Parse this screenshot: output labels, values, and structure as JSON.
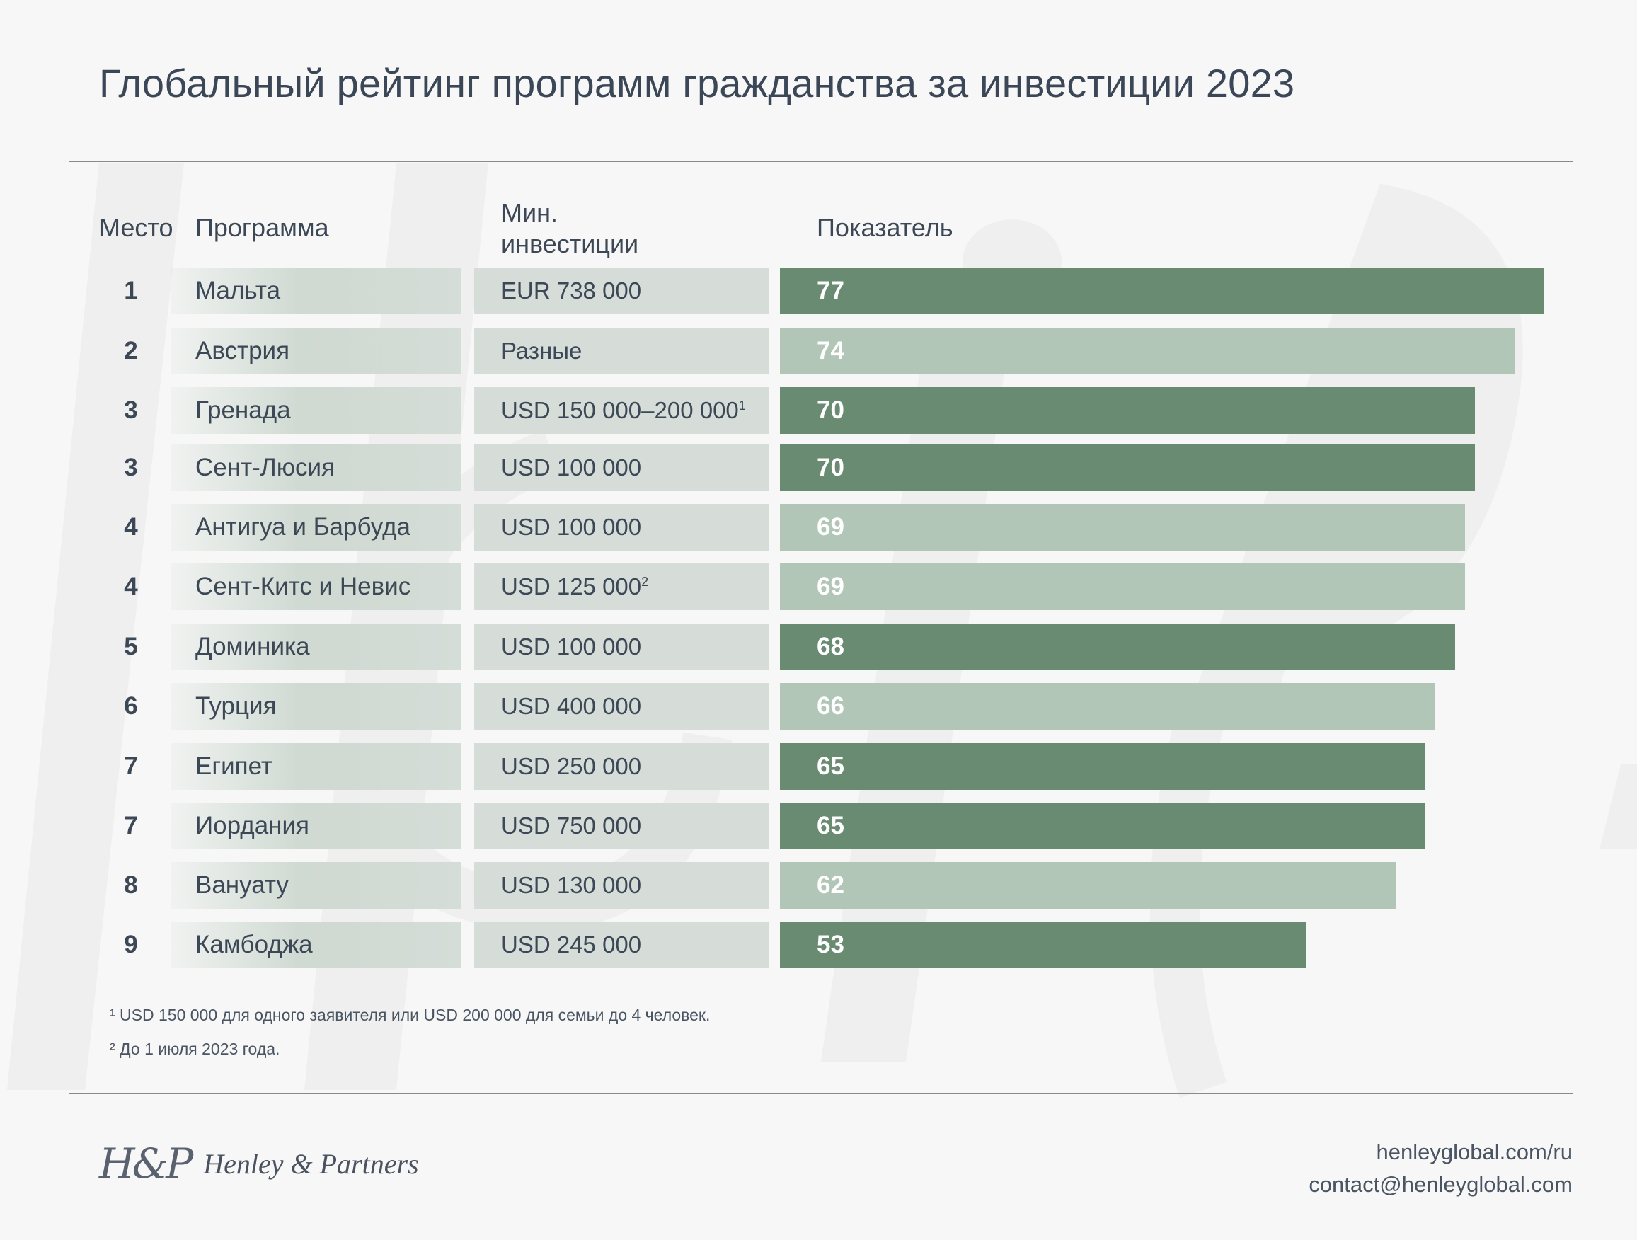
{
  "title": "Глобальный рейтинг программ гражданства за инвестиции 2023",
  "headers": {
    "rank": "Место",
    "program": "Программа",
    "investment_line1": "Мин.",
    "investment_line2": "инвестиции",
    "score": "Показатель"
  },
  "colors": {
    "dark_bar": "#688b71",
    "light_bar": "#b1c6b6",
    "text": "#3d4856"
  },
  "chart_data": {
    "type": "bar",
    "title": "Глобальный рейтинг программ гражданства за инвестиции 2023",
    "categories": [
      "Мальта",
      "Австрия",
      "Гренада",
      "Сент-Люсия",
      "Антигуа и Барбуда",
      "Сент-Китс и Невис",
      "Доминика",
      "Турция",
      "Египет",
      "Иордания",
      "Вануату",
      "Камбоджа"
    ],
    "values": [
      77,
      74,
      70,
      70,
      69,
      69,
      68,
      66,
      65,
      65,
      62,
      53
    ],
    "xlim": [
      0,
      77
    ],
    "rows": [
      {
        "rank": "1",
        "program": "Мальта",
        "investment": "EUR 738 000",
        "note": "",
        "score": 77,
        "shade": "dark"
      },
      {
        "rank": "2",
        "program": "Австрия",
        "investment": "Разные",
        "note": "",
        "score": 74,
        "shade": "light"
      },
      {
        "rank": "3",
        "program": "Гренада",
        "investment": "USD 150 000–200 000",
        "note": "1",
        "score": 70,
        "shade": "dark"
      },
      {
        "rank": "3",
        "program": "Сент-Люсия",
        "investment": "USD 100 000",
        "note": "",
        "score": 70,
        "shade": "dark"
      },
      {
        "rank": "4",
        "program": "Антигуа и Барбуда",
        "investment": "USD 100 000",
        "note": "",
        "score": 69,
        "shade": "light"
      },
      {
        "rank": "4",
        "program": "Сент-Китс и Невис",
        "investment": "USD 125 000",
        "note": "2",
        "score": 69,
        "shade": "light"
      },
      {
        "rank": "5",
        "program": "Доминика",
        "investment": "USD 100 000",
        "note": "",
        "score": 68,
        "shade": "dark"
      },
      {
        "rank": "6",
        "program": "Турция",
        "investment": "USD 400 000",
        "note": "",
        "score": 66,
        "shade": "light"
      },
      {
        "rank": "7",
        "program": "Египет",
        "investment": "USD 250 000",
        "note": "",
        "score": 65,
        "shade": "dark"
      },
      {
        "rank": "7",
        "program": "Иордания",
        "investment": "USD 750 000",
        "note": "",
        "score": 65,
        "shade": "dark"
      },
      {
        "rank": "8",
        "program": "Вануату",
        "investment": "USD 130 000",
        "note": "",
        "score": 62,
        "shade": "light"
      },
      {
        "rank": "9",
        "program": "Камбоджа",
        "investment": "USD 245 000",
        "note": "",
        "score": 53,
        "shade": "dark"
      }
    ]
  },
  "footnotes": {
    "fn1": "¹ USD 150 000 для одного заявителя или USD 200 000 для семьи до 4 человек.",
    "fn2": "² До 1 июля 2023 года."
  },
  "brand": {
    "mark": "H&P",
    "name": "Henley & Partners"
  },
  "contact": {
    "website": "henleyglobal.com/ru",
    "email": "contact@henleyglobal.com"
  }
}
